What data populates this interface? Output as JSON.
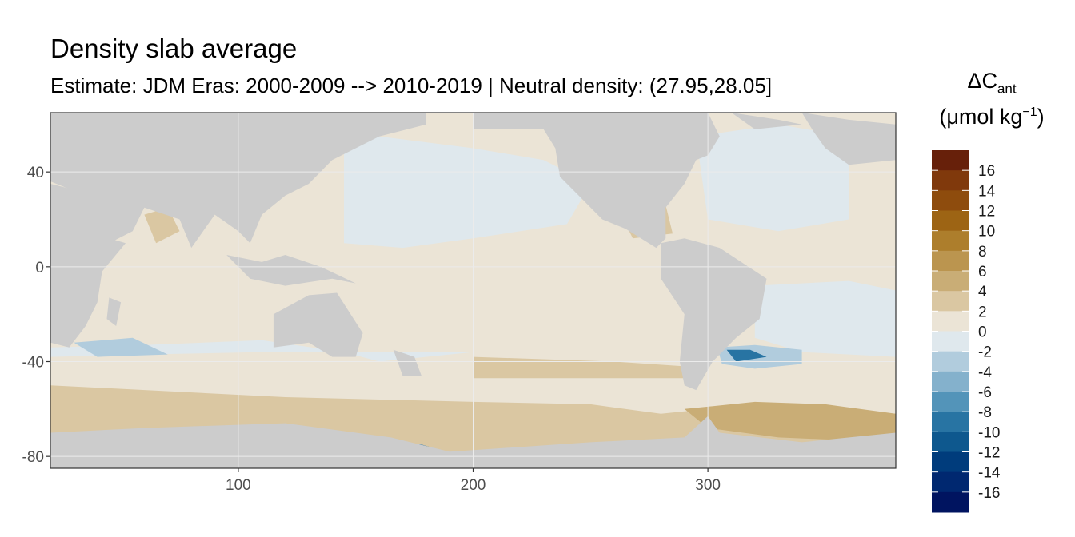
{
  "title": "Density slab average",
  "subtitle": "Estimate: JDM Eras: 2000-2009 --> 2010-2019 | Neutral density: (27.95,28.05]",
  "chart_data": {
    "type": "heatmap",
    "title": "Density slab average",
    "subtitle": "Estimate: JDM Eras: 2000-2009 --> 2010-2019 | Neutral density: (27.95,28.05]",
    "x_ticks": [
      "100",
      "200",
      "300"
    ],
    "y_ticks": [
      "40",
      "0",
      "-40",
      "-80"
    ],
    "xlim": [
      20,
      380
    ],
    "ylim": [
      -85,
      65
    ],
    "grid": true,
    "legend": {
      "placement": "right",
      "title_main": "ΔC",
      "title_sub": "ant",
      "title_unit_prefix": "(μmol kg",
      "title_unit_sup": "−1",
      "title_unit_suffix": ")",
      "labels": [
        "16",
        "14",
        "12",
        "10",
        "8",
        "6",
        "4",
        "2",
        "0",
        "-2",
        "-4",
        "-6",
        "-8",
        "-10",
        "-12",
        "-14",
        "-16"
      ],
      "colors": [
        "#67200a",
        "#80390c",
        "#8e4c0d",
        "#9d6414",
        "#ad7e2c",
        "#bb954f",
        "#c9ad76",
        "#dac7a2",
        "#ebe4d6",
        "#dfe8ed",
        "#b1ccdd",
        "#84b1cc",
        "#5394b9",
        "#2874a3",
        "#0e588e",
        "#003c7c",
        "#002870",
        "#001460"
      ]
    },
    "colors": {
      "land": "#cccccc",
      "panel_border": "#333333",
      "gridline": "#ebebeb",
      "neutral": "#ebe4d6",
      "light_positive": "#dac7a2",
      "moderate_positive": "#c9ad76",
      "light_negative": "#dfe8ed",
      "moderate_negative": "#b1ccdd",
      "strong_negative": "#2874a3"
    }
  }
}
